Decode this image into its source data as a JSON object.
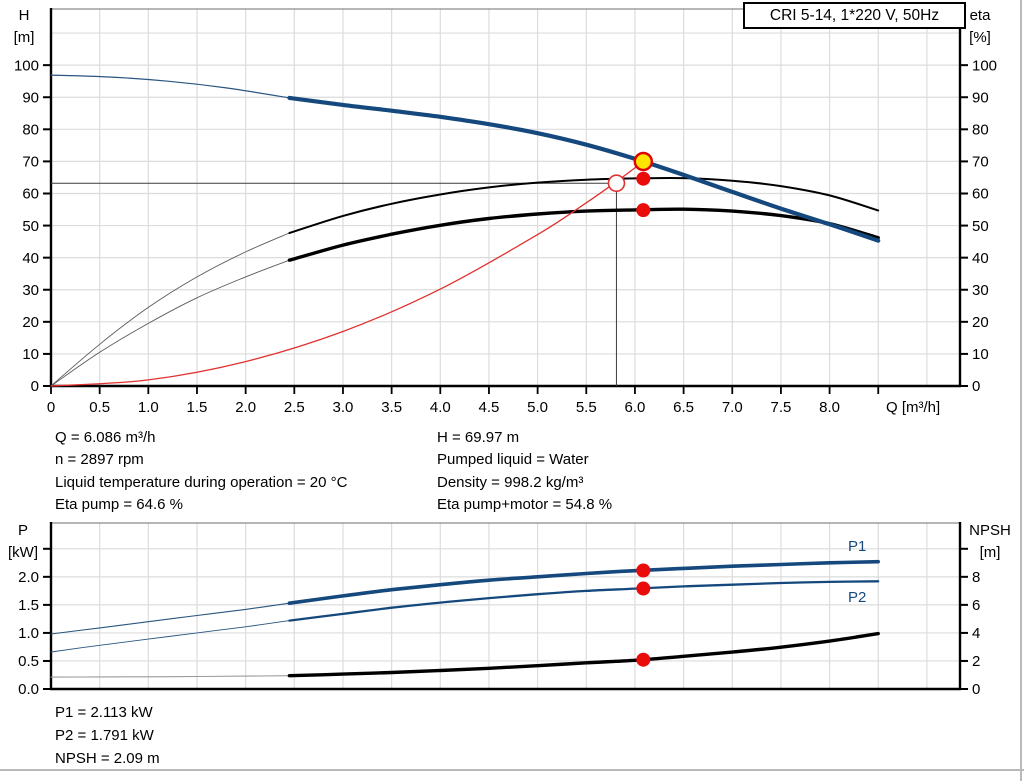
{
  "title_box": "CRI 5-14, 1*220 V, 50Hz",
  "colors": {
    "curve_blue": "#15497d",
    "curve_black": "#000000",
    "thin_gray": "#5a5a5a",
    "npsh_thin_gray": "#999999",
    "system_red": "#e03231",
    "marker_red": "#ea0b0b",
    "marker_yellow": "#ffe400",
    "grid": "#dcdcdc",
    "axis": "#000000"
  },
  "axes_labels": {
    "h": "H",
    "h_unit": "[m]",
    "eta": "eta",
    "eta_unit": "[%]",
    "q": "Q [m³/h]",
    "p": "P",
    "p_unit": "[kW]",
    "npsh": "NPSH",
    "npsh_unit": "[m]"
  },
  "series_labels": {
    "p1": "P1",
    "p2": "P2"
  },
  "annotations": {
    "duty_left": [
      "Q = 6.086 m³/h",
      "n = 2897 rpm",
      "Liquid temperature during operation = 20 °C",
      "Eta pump = 64.6 %"
    ],
    "duty_right": [
      "H = 69.97 m",
      "Pumped liquid = Water",
      "Density = 998.2 kg/m³",
      "Eta pump+motor = 54.8 %"
    ],
    "power": [
      "P1 = 2.113 kW",
      "P2 = 1.791 kW",
      "NPSH = 2.09 m"
    ]
  },
  "chart_data": [
    {
      "type": "line",
      "name": "head-and-efficiency-vs-flow",
      "x": {
        "label": "Q [m³/h]",
        "min": 0,
        "max": 9.34,
        "ticks": [
          0,
          0.5,
          1,
          1.5,
          2,
          2.5,
          3,
          3.5,
          4,
          4.5,
          5,
          5.5,
          6,
          6.5,
          7,
          7.5,
          8,
          8.5
        ],
        "tick_labels": [
          "0",
          "0.5",
          "1.0",
          "1.5",
          "2.0",
          "2.5",
          "3.0",
          "3.5",
          "4.0",
          "4.5",
          "5.0",
          "5.5",
          "6.0",
          "6.5",
          "7.0",
          "7.5",
          "8.0",
          ""
        ],
        "grid": [
          0.5,
          1,
          1.5,
          2,
          2.5,
          3,
          3.5,
          4,
          4.5,
          5,
          5.5,
          6,
          6.5,
          7,
          7.5,
          8,
          8.5,
          9
        ]
      },
      "y_left": {
        "label": "H [m]",
        "min": 0,
        "max": 117.5,
        "ticks": [
          0,
          10,
          20,
          30,
          40,
          50,
          60,
          70,
          80,
          90,
          100
        ],
        "tick_labels": [
          "0",
          "10",
          "20",
          "30",
          "40",
          "50",
          "60",
          "70",
          "80",
          "90",
          "100"
        ],
        "grid": [
          10,
          20,
          30,
          40,
          50,
          60,
          70,
          80,
          90,
          100,
          110
        ]
      },
      "y_right": {
        "label": "eta [%]",
        "scale_to_left": 1,
        "ticks": [
          0,
          10,
          20,
          30,
          40,
          50,
          60,
          70,
          80,
          90,
          100
        ],
        "tick_labels": [
          "0",
          "10",
          "20",
          "30",
          "40",
          "50",
          "60",
          "70",
          "80",
          "90",
          "100"
        ]
      },
      "show_x_tick_marks": true,
      "series": [
        {
          "name": "eta-pump-motor-curve",
          "axis": "right",
          "color": "#000000",
          "thin_color": "#5a5a5a",
          "thin_width": 0.9,
          "thick_width": 3.4,
          "thin": [
            [
              0,
              0
            ],
            [
              0.5,
              10.5
            ],
            [
              1,
              19.5
            ],
            [
              1.5,
              27.5
            ],
            [
              2,
              34
            ],
            [
              2.45,
              39.2
            ]
          ],
          "thick": [
            [
              2.45,
              39.2
            ],
            [
              3,
              43.9
            ],
            [
              3.5,
              47.3
            ],
            [
              4,
              50.1
            ],
            [
              4.5,
              52.2
            ],
            [
              5,
              53.6
            ],
            [
              5.5,
              54.5
            ],
            [
              6,
              54.9
            ],
            [
              6.5,
              55.1
            ],
            [
              7,
              54.5
            ],
            [
              7.5,
              53.1
            ],
            [
              8,
              50.6
            ],
            [
              8.5,
              46.2
            ]
          ]
        },
        {
          "name": "eta-pump-curve",
          "axis": "right",
          "color": "#000000",
          "thin_color": "#5a5a5a",
          "thin_width": 0.9,
          "thick_width": 2.0,
          "thin": [
            [
              0,
              0
            ],
            [
              0.5,
              13
            ],
            [
              1,
              24.5
            ],
            [
              1.5,
              34
            ],
            [
              2,
              41.8
            ],
            [
              2.45,
              47.7
            ]
          ],
          "thick": [
            [
              2.45,
              47.7
            ],
            [
              3,
              53
            ],
            [
              3.5,
              56.8
            ],
            [
              4,
              59.7
            ],
            [
              4.5,
              61.9
            ],
            [
              5,
              63.4
            ],
            [
              5.5,
              64.3
            ],
            [
              6,
              64.7
            ],
            [
              6.5,
              64.8
            ],
            [
              7,
              64.0
            ],
            [
              7.5,
              62.3
            ],
            [
              8,
              59.4
            ],
            [
              8.5,
              54.7
            ]
          ]
        },
        {
          "name": "pump-head-curve",
          "axis": "left",
          "color": "#15497d",
          "thin_color": "#2a5580",
          "thin_width": 1.2,
          "thick_width": 4.2,
          "thin": [
            [
              0,
              96.9
            ],
            [
              0.6,
              96.3
            ],
            [
              1.2,
              95.0
            ],
            [
              1.8,
              92.9
            ],
            [
              2.45,
              89.8
            ]
          ],
          "thick": [
            [
              2.45,
              89.8
            ],
            [
              3,
              87.6
            ],
            [
              3.5,
              85.8
            ],
            [
              4,
              83.9
            ],
            [
              4.5,
              81.6
            ],
            [
              5,
              78.8
            ],
            [
              5.5,
              75.2
            ],
            [
              6,
              70.8
            ],
            [
              6.5,
              65.8
            ],
            [
              7,
              60.5
            ],
            [
              7.5,
              55.3
            ],
            [
              8,
              50.4
            ],
            [
              8.5,
              45.3
            ]
          ]
        },
        {
          "name": "system-curve",
          "axis": "left",
          "color": "#e03231",
          "thin_color": "#e03231",
          "thin_width": 1.3,
          "thick_width": 1.3,
          "thin": [
            [
              0,
              0
            ],
            [
              1,
              1.9
            ],
            [
              2,
              7.6
            ],
            [
              3,
              17
            ],
            [
              4,
              30.2
            ],
            [
              5,
              47.2
            ],
            [
              5.5,
              57.1
            ],
            [
              5.81,
              63.7
            ],
            [
              6.086,
              69.97
            ]
          ]
        }
      ],
      "crosshair": {
        "q": 5.81,
        "value": 63.2
      },
      "markers": [
        {
          "name": "specified-duty-point",
          "q": 5.81,
          "value": 63.2,
          "axis": "left",
          "style": "open-red",
          "interactable": false
        },
        {
          "name": "duty-point",
          "q": 6.086,
          "value": 69.97,
          "axis": "left",
          "style": "yellow-red",
          "interactable": true
        },
        {
          "name": "eta-pump-duty-point",
          "q": 6.086,
          "value": 64.6,
          "axis": "right",
          "style": "red-dot",
          "interactable": false
        },
        {
          "name": "eta-pump-motor-duty-point",
          "q": 6.086,
          "value": 54.8,
          "axis": "right",
          "style": "red-dot",
          "interactable": false
        }
      ]
    },
    {
      "type": "line",
      "name": "power-and-npsh-vs-flow",
      "x": {
        "label": "Q [m³/h]",
        "min": 0,
        "max": 9.34,
        "ticks": [],
        "tick_labels": [],
        "grid": [
          0.5,
          1,
          1.5,
          2,
          2.5,
          3,
          3.5,
          4,
          4.5,
          5,
          5.5,
          6,
          6.5,
          7,
          7.5,
          8,
          8.5,
          9
        ]
      },
      "y_left": {
        "label": "P [kW]",
        "min": 0,
        "max": 2.96,
        "ticks": [
          0,
          0.5,
          1,
          1.5,
          2,
          2.5
        ],
        "tick_labels": [
          "0.0",
          "0.5",
          "1.0",
          "1.5",
          "2.0",
          ""
        ],
        "grid": [
          0.5,
          1,
          1.5,
          2,
          2.5
        ]
      },
      "y_right": {
        "label": "NPSH [m]",
        "scale_to_left": 0.25,
        "ticks": [
          0,
          2,
          4,
          6,
          8,
          10
        ],
        "tick_labels": [
          "0",
          "2",
          "4",
          "6",
          "8",
          ""
        ]
      },
      "show_x_tick_marks": false,
      "series": [
        {
          "name": "npsh-curve",
          "axis": "right",
          "color": "#000000",
          "thin_color": "#999999",
          "thin_width": 1.1,
          "thick_width": 3.4,
          "thin": [
            [
              0,
              0.85
            ],
            [
              0.5,
              0.86
            ],
            [
              1,
              0.87
            ],
            [
              1.5,
              0.89
            ],
            [
              2,
              0.92
            ],
            [
              2.45,
              0.95
            ]
          ],
          "thick": [
            [
              2.45,
              0.95
            ],
            [
              3,
              1.06
            ],
            [
              3.5,
              1.18
            ],
            [
              4,
              1.32
            ],
            [
              4.5,
              1.48
            ],
            [
              5,
              1.66
            ],
            [
              5.5,
              1.87
            ],
            [
              6,
              2.05
            ],
            [
              6.5,
              2.33
            ],
            [
              7,
              2.63
            ],
            [
              7.5,
              2.98
            ],
            [
              8,
              3.42
            ],
            [
              8.5,
              3.95
            ]
          ]
        },
        {
          "name": "p2-curve",
          "axis": "left",
          "color": "#15497d",
          "thin_color": "#2a5580",
          "thin_width": 0.9,
          "thick_width": 2.3,
          "thin": [
            [
              0,
              0.66
            ],
            [
              0.5,
              0.78
            ],
            [
              1,
              0.89
            ],
            [
              1.5,
              1.0
            ],
            [
              2,
              1.11
            ],
            [
              2.45,
              1.22
            ]
          ],
          "thick": [
            [
              2.45,
              1.22
            ],
            [
              3,
              1.34
            ],
            [
              3.5,
              1.45
            ],
            [
              4,
              1.54
            ],
            [
              4.5,
              1.62
            ],
            [
              5,
              1.69
            ],
            [
              5.5,
              1.75
            ],
            [
              6,
              1.79
            ],
            [
              6.5,
              1.83
            ],
            [
              7,
              1.86
            ],
            [
              7.5,
              1.89
            ],
            [
              8,
              1.91
            ],
            [
              8.5,
              1.92
            ]
          ]
        },
        {
          "name": "p1-curve",
          "axis": "left",
          "color": "#15497d",
          "thin_color": "#2a5580",
          "thin_width": 1.1,
          "thick_width": 3.6,
          "thin": [
            [
              0,
              0.98
            ],
            [
              0.5,
              1.09
            ],
            [
              1,
              1.2
            ],
            [
              1.5,
              1.31
            ],
            [
              2,
              1.42
            ],
            [
              2.45,
              1.53
            ]
          ],
          "thick": [
            [
              2.45,
              1.53
            ],
            [
              3,
              1.66
            ],
            [
              3.5,
              1.77
            ],
            [
              4,
              1.86
            ],
            [
              4.5,
              1.94
            ],
            [
              5,
              2.0
            ],
            [
              5.5,
              2.06
            ],
            [
              6,
              2.11
            ],
            [
              6.5,
              2.15
            ],
            [
              7,
              2.19
            ],
            [
              7.5,
              2.22
            ],
            [
              8,
              2.25
            ],
            [
              8.5,
              2.27
            ]
          ]
        }
      ],
      "crosshair": null,
      "markers": [
        {
          "name": "p1-duty-point",
          "q": 6.086,
          "value": 2.113,
          "axis": "left",
          "style": "red-dot",
          "interactable": false
        },
        {
          "name": "p2-duty-point",
          "q": 6.086,
          "value": 1.791,
          "axis": "left",
          "style": "red-dot",
          "interactable": false
        },
        {
          "name": "npsh-duty-point",
          "q": 6.086,
          "value": 2.09,
          "axis": "right",
          "style": "red-dot",
          "interactable": false
        }
      ]
    }
  ]
}
